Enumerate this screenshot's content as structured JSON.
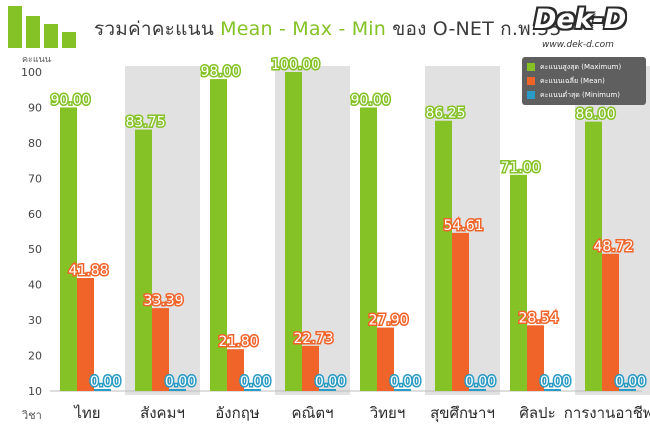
{
  "header": {
    "title_prefix": "รวมค่าคะแนน",
    "title_highlight": "Mean - Max - Min",
    "title_suffix": "ของ O-NET ก.พ.55",
    "brand_name": "Dek-D",
    "brand_url": "www.dek-d.com"
  },
  "colors": {
    "max": "#84c225",
    "mean": "#f0642a",
    "min": "#2a9bc4",
    "band": "#e1e1e1",
    "accent": "#84c225"
  },
  "chart_data": {
    "type": "bar",
    "title": "รวมค่าคะแนน Mean - Max - Min ของ O-NET ก.พ.55",
    "xlabel": "วิชา",
    "ylabel": "คะแนน",
    "ylim": [
      10,
      100
    ],
    "yticks": [
      "10",
      "20",
      "30",
      "40",
      "50",
      "60",
      "70",
      "80",
      "90",
      "100"
    ],
    "categories": [
      "ไทย",
      "สังคมฯ",
      "อังกฤษ",
      "คณิตฯ",
      "วิทยฯ",
      "สุขศึกษาฯ",
      "ศิลปะ",
      "การงานอาชีพฯ"
    ],
    "series": [
      {
        "name": "คะแนนสูงสุด (Maximum)",
        "values": [
          90.0,
          83.75,
          98.0,
          100.0,
          90.0,
          86.25,
          71.0,
          86.0
        ],
        "labels": [
          "90.00",
          "83.75",
          "98.00",
          "100.00",
          "90.00",
          "86.25",
          "71.00",
          "86.00"
        ]
      },
      {
        "name": "คะแนนเฉลี่ย (Mean)",
        "values": [
          41.88,
          33.39,
          21.8,
          22.73,
          27.9,
          54.61,
          28.54,
          48.72
        ],
        "labels": [
          "41.88",
          "33.39",
          "21.80",
          "22.73",
          "27.90",
          "54.61",
          "28.54",
          "48.72"
        ]
      },
      {
        "name": "คะแนนต่ำสุด (Minimum)",
        "values": [
          0.0,
          0.0,
          0.0,
          0.0,
          0.0,
          0.0,
          0.0,
          0.0
        ],
        "labels": [
          "0.00",
          "0.00",
          "0.00",
          "0.00",
          "0.00",
          "0.00",
          "0.00",
          "0.00"
        ]
      }
    ],
    "legend_position": "top-right",
    "grid": false
  }
}
